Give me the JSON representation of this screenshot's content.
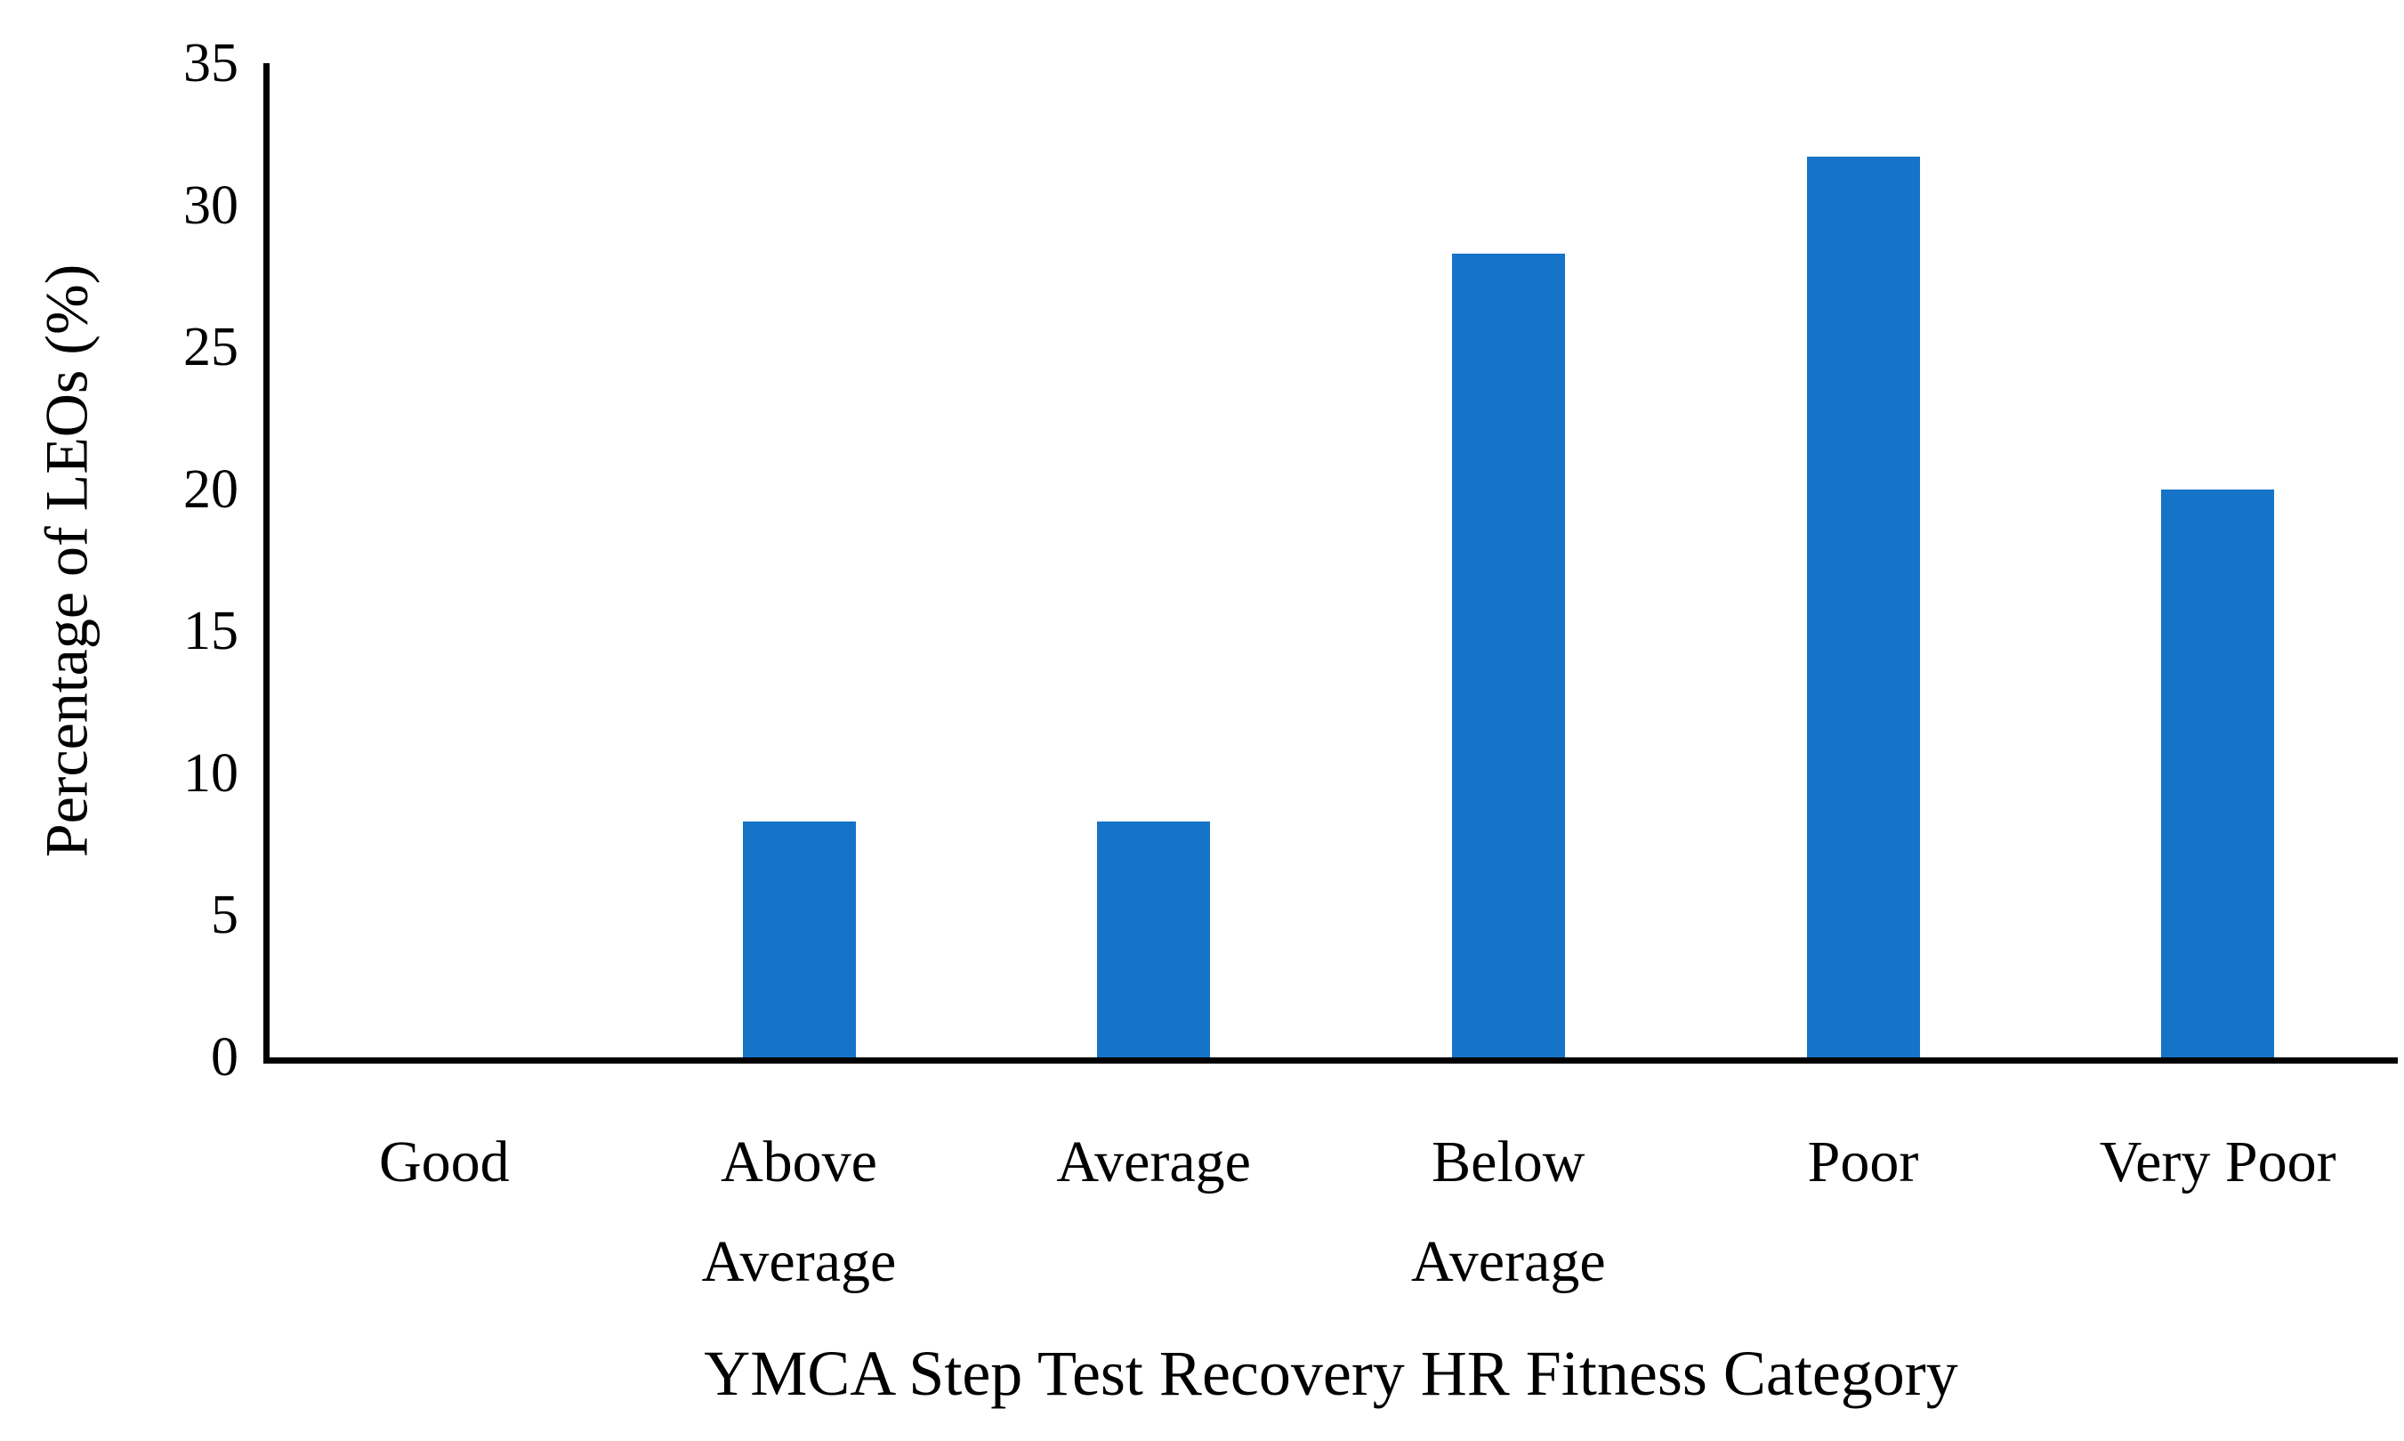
{
  "chart_data": {
    "type": "bar",
    "title": "",
    "xlabel": "YMCA Step Test Recovery HR Fitness Category",
    "ylabel": "Percentage of LEOs (%)",
    "categories": [
      "Good",
      "Above Average",
      "Average",
      "Below Average",
      "Poor",
      "Very Poor"
    ],
    "category_label_lines": [
      [
        "Good"
      ],
      [
        "Above",
        "Average"
      ],
      [
        "Average"
      ],
      [
        "Below",
        "Average"
      ],
      [
        "Poor"
      ],
      [
        "Very Poor"
      ]
    ],
    "values": [
      0,
      8.3,
      8.3,
      28.3,
      31.7,
      20.0
    ],
    "yticks": [
      0,
      5,
      10,
      15,
      20,
      25,
      30,
      35
    ],
    "ylim": [
      0,
      35
    ],
    "grid": false,
    "legend": null,
    "bar_color": "#1573C8",
    "axis_color": "#000000"
  }
}
